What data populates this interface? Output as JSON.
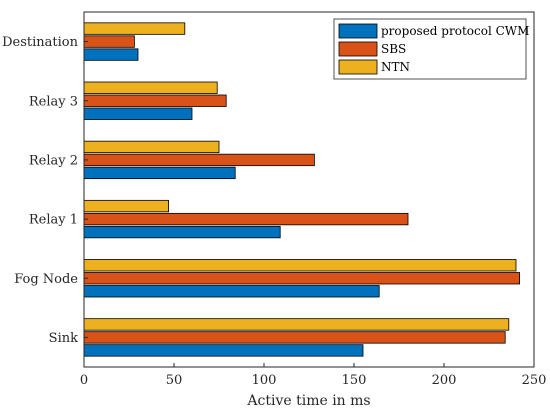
{
  "chart_data": {
    "type": "bar",
    "orientation": "horizontal",
    "title": "",
    "xlabel": "Active time in ms",
    "ylabel": "",
    "xlim": [
      0,
      250
    ],
    "xticks": [
      0,
      50,
      100,
      150,
      200,
      250
    ],
    "grid": false,
    "legend_position": "top-right",
    "categories": [
      "Sink",
      "Fog Node",
      "Relay 1",
      "Relay 2",
      "Relay 3",
      "Destination"
    ],
    "series": [
      {
        "name": "proposed protocol CWM",
        "color": "#0072BD",
        "values": [
          155,
          164,
          109,
          84,
          60,
          30
        ]
      },
      {
        "name": "SBS",
        "color": "#D95319",
        "values": [
          234,
          242,
          180,
          128,
          79,
          28
        ]
      },
      {
        "name": "NTN",
        "color": "#EDB120",
        "values": [
          236,
          240,
          47,
          75,
          74,
          56
        ]
      }
    ]
  }
}
